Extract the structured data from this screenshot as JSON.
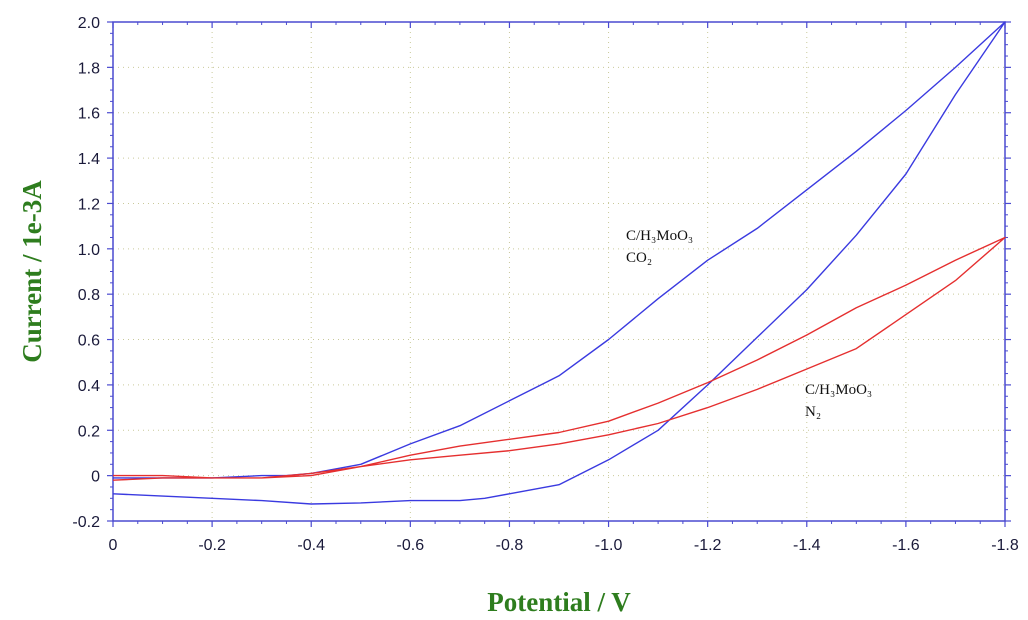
{
  "chart_data": {
    "type": "line",
    "title": "",
    "xlabel": "Potential / V",
    "ylabel": "Current / 1e-3A",
    "xlim": [
      0,
      -1.8
    ],
    "ylim": [
      -0.2,
      2.0
    ],
    "grid": true,
    "legend": "none",
    "x_ticks": [
      "0",
      "-0.2",
      "-0.4",
      "-0.6",
      "-0.8",
      "-1.0",
      "-1.2",
      "-1.4",
      "-1.6",
      "-1.8"
    ],
    "y_ticks": [
      "-0.2",
      "0",
      "0.2",
      "0.4",
      "0.6",
      "0.8",
      "1.0",
      "1.2",
      "1.4",
      "1.6",
      "1.8",
      "2.0"
    ],
    "annotations": [
      {
        "lines": [
          "C/H₃MoO₃",
          "CO₂"
        ]
      },
      {
        "lines": [
          "C/H₃MoO₃",
          "N₂"
        ]
      }
    ],
    "series": [
      {
        "color": "#3a3ae0",
        "x": [
          0,
          -0.1,
          -0.2,
          -0.3,
          -0.35,
          -0.4,
          -0.5,
          -0.6,
          -0.7,
          -0.8,
          -0.9,
          -1.0,
          -1.1,
          -1.2,
          -1.3,
          -1.4,
          -1.5,
          -1.6,
          -1.7,
          -1.8,
          -1.7,
          -1.6,
          -1.5,
          -1.4,
          -1.3,
          -1.2,
          -1.1,
          -1.0,
          -0.9,
          -0.8,
          -0.75,
          -0.7,
          -0.6,
          -0.5,
          -0.4,
          -0.3,
          -0.2,
          -0.1,
          0
        ],
        "y": [
          -0.01,
          -0.01,
          -0.01,
          0.0,
          0.0,
          0.01,
          0.05,
          0.14,
          0.22,
          0.33,
          0.44,
          0.6,
          0.78,
          0.95,
          1.09,
          1.26,
          1.43,
          1.61,
          1.8,
          2.0,
          1.68,
          1.33,
          1.06,
          0.82,
          0.61,
          0.4,
          0.2,
          0.07,
          -0.04,
          -0.08,
          -0.1,
          -0.11,
          -0.11,
          -0.12,
          -0.125,
          -0.11,
          -0.1,
          -0.09,
          -0.08
        ]
      },
      {
        "color": "#e52f2f",
        "x": [
          0,
          -0.1,
          -0.2,
          -0.3,
          -0.4,
          -0.5,
          -0.6,
          -0.7,
          -0.8,
          -0.9,
          -1.0,
          -1.1,
          -1.2,
          -1.3,
          -1.4,
          -1.5,
          -1.6,
          -1.7,
          -1.8,
          -1.7,
          -1.6,
          -1.5,
          -1.4,
          -1.3,
          -1.2,
          -1.1,
          -1.0,
          -0.9,
          -0.8,
          -0.7,
          -0.6,
          -0.5,
          -0.4,
          -0.3,
          -0.2,
          -0.1,
          0
        ],
        "y": [
          -0.02,
          -0.01,
          -0.01,
          -0.01,
          0.0,
          0.04,
          0.07,
          0.09,
          0.11,
          0.14,
          0.18,
          0.23,
          0.3,
          0.38,
          0.47,
          0.56,
          0.71,
          0.86,
          1.05,
          0.95,
          0.84,
          0.74,
          0.62,
          0.51,
          0.41,
          0.32,
          0.24,
          0.19,
          0.16,
          0.13,
          0.09,
          0.04,
          0.01,
          -0.01,
          -0.01,
          0.0,
          0.0
        ]
      }
    ]
  }
}
